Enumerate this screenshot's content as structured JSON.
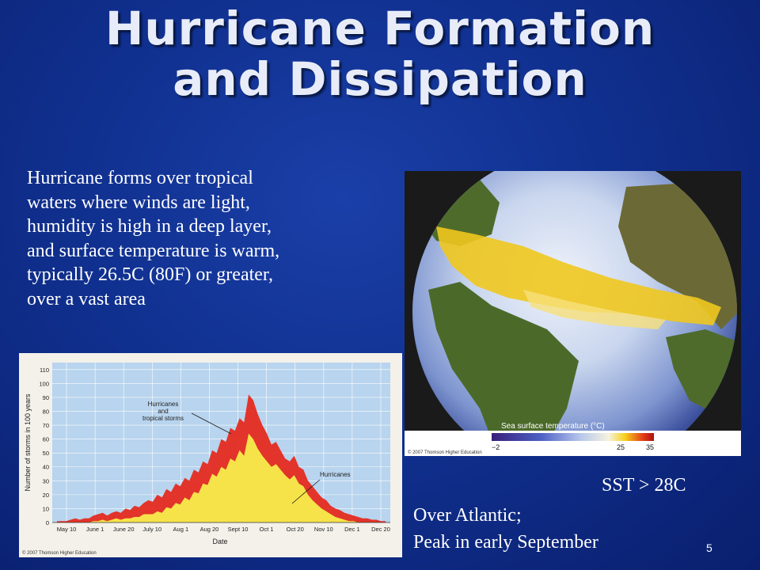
{
  "slide": {
    "title_line1": "Hurricane Formation",
    "title_line2": "and Dissipation",
    "intro_lines": [
      "Hurricane forms over tropical",
      "waters where winds are light,",
      "humidity is high in a deep layer,",
      "and surface  temperature is warm,",
      "typically 26.5C (80F) or greater,",
      "over a vast area"
    ],
    "sst_note": "SST > 28C",
    "note_line1": "Over Atlantic;",
    "note_line2": "Peak in early September",
    "page_number": "5"
  },
  "globe": {
    "legend_title": "Sea surface temperature (°C)",
    "legend_ticks": [
      "−2",
      "25",
      "35"
    ],
    "credit": "© 2007 Thomson Higher Education"
  },
  "chart_data": {
    "type": "area",
    "xlabel": "Date",
    "ylabel": "Number of storms in 100 years",
    "ylim": [
      0,
      115
    ],
    "y_ticks": [
      0,
      10,
      20,
      30,
      40,
      50,
      60,
      70,
      80,
      90,
      100,
      110
    ],
    "x_tick_labels": [
      "May 10",
      "June 1",
      "June 20",
      "July 10",
      "Aug 1",
      "Aug 20",
      "Sept 10",
      "Oct 1",
      "Oct 20",
      "Nov 10",
      "Dec 1",
      "Dec 20"
    ],
    "grid": true,
    "annotations": [
      "Hurricanes\nand\ntropical storms",
      "Hurricanes"
    ],
    "credit": "© 2007 Thomson Higher Education",
    "series": [
      {
        "name": "Hurricanes and tropical storms",
        "color": "#e42b1f",
        "values": [
          1,
          1,
          1,
          2,
          3,
          2,
          3,
          3,
          5,
          6,
          7,
          5,
          7,
          8,
          7,
          10,
          9,
          12,
          11,
          14,
          16,
          15,
          20,
          18,
          24,
          22,
          28,
          26,
          32,
          30,
          38,
          36,
          44,
          42,
          52,
          50,
          60,
          58,
          68,
          66,
          75,
          72,
          92,
          88,
          78,
          70,
          64,
          56,
          58,
          52,
          46,
          44,
          48,
          40,
          38,
          30,
          26,
          22,
          18,
          16,
          12,
          10,
          9,
          7,
          6,
          5,
          4,
          3,
          3,
          2,
          2,
          1,
          1
        ]
      },
      {
        "name": "Hurricanes",
        "color": "#f6e34a",
        "values": [
          0,
          0,
          0,
          0,
          0,
          0,
          0,
          0,
          1,
          1,
          2,
          1,
          2,
          3,
          2,
          3,
          3,
          4,
          4,
          6,
          6,
          6,
          8,
          7,
          11,
          10,
          14,
          13,
          18,
          16,
          22,
          21,
          28,
          27,
          35,
          33,
          40,
          38,
          46,
          44,
          52,
          48,
          64,
          60,
          53,
          48,
          44,
          40,
          42,
          38,
          34,
          31,
          34,
          28,
          26,
          20,
          16,
          13,
          10,
          8,
          6,
          4,
          3,
          2,
          1,
          1,
          0,
          0,
          0,
          0,
          0,
          0,
          0
        ]
      }
    ]
  }
}
